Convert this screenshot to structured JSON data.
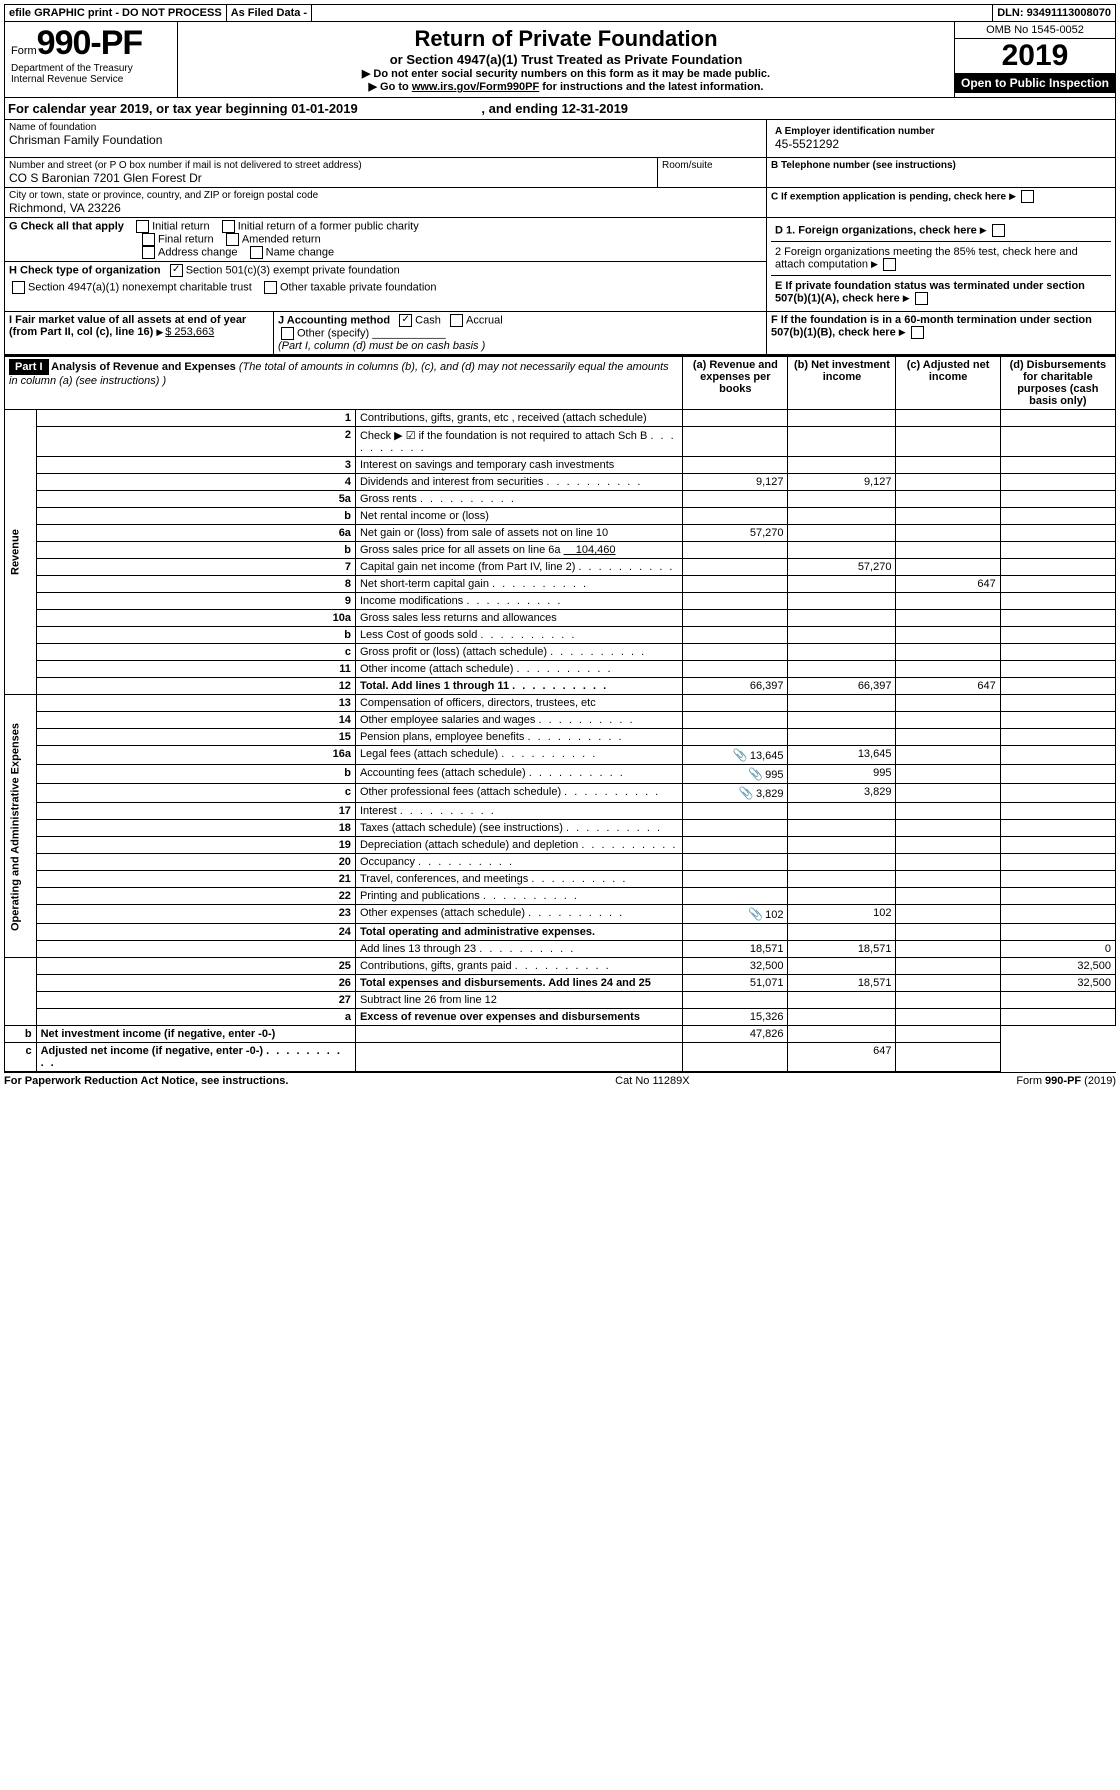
{
  "top": {
    "efile": "efile GRAPHIC print - DO NOT PROCESS",
    "asfiled": "As Filed Data -",
    "dln_label": "DLN:",
    "dln": "93491113008070"
  },
  "header": {
    "form_prefix": "Form",
    "form_no": "990-PF",
    "dept": "Department of the Treasury",
    "irs": "Internal Revenue Service",
    "title": "Return of Private Foundation",
    "subtitle": "or Section 4947(a)(1) Trust Treated as Private Foundation",
    "note1": "▶ Do not enter social security numbers on this form as it may be made public.",
    "note2_pre": "▶ Go to ",
    "note2_link": "www.irs.gov/Form990PF",
    "note2_post": " for instructions and the latest information.",
    "omb": "OMB No 1545-0052",
    "year": "2019",
    "open": "Open to Public Inspection"
  },
  "calendar": {
    "pre": "For calendar year 2019, or tax year beginning ",
    "begin": "01-01-2019",
    "mid": ", and ending ",
    "end": "12-31-2019"
  },
  "info": {
    "name_label": "Name of foundation",
    "name": "Chrisman Family Foundation",
    "ein_label": "A Employer identification number",
    "ein": "45-5521292",
    "addr_label": "Number and street (or P O  box number if mail is not delivered to street address)",
    "addr": "CO S Baronian 7201 Glen Forest Dr",
    "room_label": "Room/suite",
    "tel_label": "B Telephone number (see instructions)",
    "city_label": "City or town, state or province, country, and ZIP or foreign postal code",
    "city": "Richmond, VA  23226",
    "c_label": "C If exemption application is pending, check here"
  },
  "g": {
    "label": "G Check all that apply",
    "initial": "Initial return",
    "initial_former": "Initial return of a former public charity",
    "final": "Final return",
    "amended": "Amended return",
    "addr_change": "Address change",
    "name_change": "Name change"
  },
  "h": {
    "label": "H Check type of organization",
    "s501": "Section 501(c)(3) exempt private foundation",
    "s4947": "Section 4947(a)(1) nonexempt charitable trust",
    "other_tax": "Other taxable private foundation"
  },
  "i": {
    "label": "I Fair market value of all assets at end of year (from Part II, col  (c), line 16)",
    "amount": "$  253,663"
  },
  "j": {
    "label": "J Accounting method",
    "cash": "Cash",
    "accrual": "Accrual",
    "other": "Other (specify)",
    "note": "(Part I, column (d) must be on cash basis )"
  },
  "d": {
    "d1": "D 1. Foreign organizations, check here",
    "d2": "2 Foreign organizations meeting the 85% test, check here and attach computation",
    "e": "E  If private foundation status was terminated under section 507(b)(1)(A), check here",
    "f": "F  If the foundation is in a 60-month termination under section 507(b)(1)(B), check here"
  },
  "part1": {
    "label": "Part I",
    "title": "Analysis of Revenue and Expenses",
    "title_note": " (The total of amounts in columns (b), (c), and (d) may not necessarily equal the amounts in column (a) (see instructions) )",
    "cols": {
      "a": "(a) Revenue and expenses per books",
      "b": "(b) Net investment income",
      "c": "(c) Adjusted net income",
      "d": "(d) Disbursements for charitable purposes (cash basis only)"
    }
  },
  "sections": {
    "revenue": "Revenue",
    "expenses": "Operating and Administrative Expenses"
  },
  "rows": [
    {
      "n": "1",
      "d": "Contributions, gifts, grants, etc , received (attach schedule)"
    },
    {
      "n": "2",
      "d": "Check ▶ ☑ if the foundation is not required to attach Sch B",
      "dots": true,
      "bold_not": true
    },
    {
      "n": "3",
      "d": "Interest on savings and temporary cash investments"
    },
    {
      "n": "4",
      "d": "Dividends and interest from securities",
      "dots": true,
      "a": "9,127",
      "b": "9,127"
    },
    {
      "n": "5a",
      "d": "Gross rents",
      "dots": true
    },
    {
      "n": "b",
      "d": "Net rental income or (loss)",
      "underline": true
    },
    {
      "n": "6a",
      "d": "Net gain or (loss) from sale of assets not on line 10",
      "a": "57,270"
    },
    {
      "n": "b",
      "d": "Gross sales price for all assets on line 6a",
      "inline_val": "104,460"
    },
    {
      "n": "7",
      "d": "Capital gain net income (from Part IV, line 2)",
      "dots": true,
      "b": "57,270"
    },
    {
      "n": "8",
      "d": "Net short-term capital gain",
      "dots": true,
      "c": "647"
    },
    {
      "n": "9",
      "d": "Income modifications",
      "dots": true
    },
    {
      "n": "10a",
      "d": "Gross sales less returns and allowances",
      "box": true
    },
    {
      "n": "b",
      "d": "Less  Cost of goods sold",
      "dots": true,
      "box": true
    },
    {
      "n": "c",
      "d": "Gross profit or (loss) (attach schedule)",
      "dots": true
    },
    {
      "n": "11",
      "d": "Other income (attach schedule)",
      "dots": true
    },
    {
      "n": "12",
      "d": "Total. Add lines 1 through 11",
      "dots": true,
      "bold": true,
      "a": "66,397",
      "b": "66,397",
      "c": "647"
    },
    {
      "n": "13",
      "d": "Compensation of officers, directors, trustees, etc"
    },
    {
      "n": "14",
      "d": "Other employee salaries and wages",
      "dots": true
    },
    {
      "n": "15",
      "d": "Pension plans, employee benefits",
      "dots": true
    },
    {
      "n": "16a",
      "d": "Legal fees (attach schedule)",
      "dots": true,
      "icon": true,
      "a": "13,645",
      "b": "13,645"
    },
    {
      "n": "b",
      "d": "Accounting fees (attach schedule)",
      "dots": true,
      "icon": true,
      "a": "995",
      "b": "995"
    },
    {
      "n": "c",
      "d": "Other professional fees (attach schedule)",
      "dots": true,
      "icon": true,
      "a": "3,829",
      "b": "3,829"
    },
    {
      "n": "17",
      "d": "Interest",
      "dots": true
    },
    {
      "n": "18",
      "d": "Taxes (attach schedule) (see instructions)",
      "dots": true
    },
    {
      "n": "19",
      "d": "Depreciation (attach schedule) and depletion",
      "dots": true
    },
    {
      "n": "20",
      "d": "Occupancy",
      "dots": true
    },
    {
      "n": "21",
      "d": "Travel, conferences, and meetings",
      "dots": true
    },
    {
      "n": "22",
      "d": "Printing and publications",
      "dots": true
    },
    {
      "n": "23",
      "d": "Other expenses (attach schedule)",
      "dots": true,
      "icon": true,
      "a": "102",
      "b": "102"
    },
    {
      "n": "24",
      "d": "Total operating and administrative expenses.",
      "bold": true
    },
    {
      "n": "",
      "d": "Add lines 13 through 23",
      "dots": true,
      "a": "18,571",
      "b": "18,571",
      "dd": "0"
    },
    {
      "n": "25",
      "d": "Contributions, gifts, grants paid",
      "dots": true,
      "a": "32,500",
      "dd": "32,500"
    },
    {
      "n": "26",
      "d": "Total expenses and disbursements. Add lines 24 and 25",
      "bold": true,
      "a": "51,071",
      "b": "18,571",
      "dd": "32,500"
    },
    {
      "n": "27",
      "d": "Subtract line 26 from line 12"
    },
    {
      "n": "a",
      "d": "Excess of revenue over expenses and disbursements",
      "bold": true,
      "a": "15,326"
    },
    {
      "n": "b",
      "d": "Net investment income (if negative, enter -0-)",
      "bold": true,
      "b": "47,826"
    },
    {
      "n": "c",
      "d": "Adjusted net income (if negative, enter -0-)",
      "bold": true,
      "dots": true,
      "c": "647"
    }
  ],
  "footer": {
    "left": "For Paperwork Reduction Act Notice, see instructions.",
    "mid": "Cat  No  11289X",
    "right": "Form 990-PF (2019)"
  }
}
